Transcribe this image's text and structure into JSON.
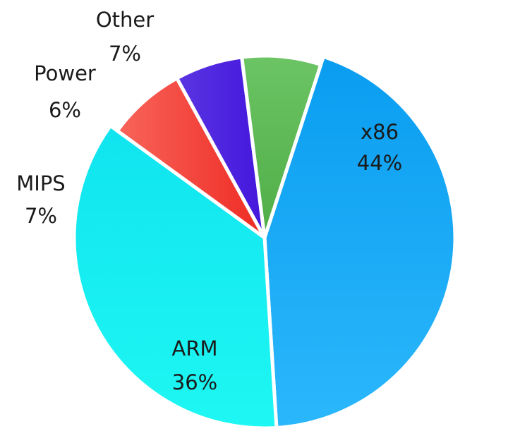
{
  "chart_data": {
    "type": "pie",
    "title": "",
    "slices": [
      {
        "name": "x86",
        "value": 44,
        "label": "x86",
        "percent_label": "44%",
        "color": "#1aaaf5"
      },
      {
        "name": "ARM",
        "value": 36,
        "label": "ARM",
        "percent_label": "36%",
        "color": "#14eef0"
      },
      {
        "name": "MIPS",
        "value": 7,
        "label": "MIPS",
        "percent_label": "7%",
        "color": "#f5443c"
      },
      {
        "name": "Power",
        "value": 6,
        "label": "Power",
        "percent_label": "6%",
        "color": "#4a1fd9"
      },
      {
        "name": "Other",
        "value": 7,
        "label": "Other",
        "percent_label": "7%",
        "color": "#5fba55"
      }
    ],
    "legend": "none",
    "labels_position": "x86 and ARM inside slices; MIPS, Power, Other outside to the left"
  }
}
